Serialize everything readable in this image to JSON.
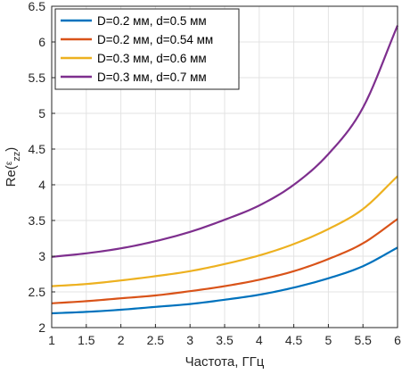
{
  "chart_data": {
    "type": "line",
    "title": "",
    "xlabel": "Частота, ГГц",
    "ylabel": "Re(ε_zz)",
    "ylabel_parts": {
      "base": "Re(",
      "symbol": "ε",
      "subscript": "zz",
      "close": ")"
    },
    "xlim": [
      1,
      6
    ],
    "ylim": [
      2,
      6.5
    ],
    "xticks": [
      1,
      1.5,
      2,
      2.5,
      3,
      3.5,
      4,
      4.5,
      5,
      5.5,
      6
    ],
    "xtick_labels": [
      "1",
      "1.5",
      "2",
      "2.5",
      "3",
      "3.5",
      "4",
      "4.5",
      "5",
      "5.5",
      "6"
    ],
    "yticks": [
      2,
      2.5,
      3,
      3.5,
      4,
      4.5,
      5,
      5.5,
      6,
      6.5
    ],
    "ytick_labels": [
      "2",
      "2.5",
      "3",
      "3.5",
      "4",
      "4.5",
      "5",
      "5.5",
      "6",
      "6.5"
    ],
    "grid": true,
    "legend_position": "top-left",
    "x": [
      1,
      1.5,
      2,
      2.5,
      3,
      3.5,
      4,
      4.5,
      5,
      5.5,
      6
    ],
    "series": [
      {
        "name": "D=0.2 мм, d=0.5 мм",
        "color": "#0072BD",
        "values": [
          2.2,
          2.22,
          2.25,
          2.29,
          2.33,
          2.39,
          2.46,
          2.56,
          2.69,
          2.86,
          3.12
        ]
      },
      {
        "name": "D=0.2 мм, d=0.54 мм",
        "color": "#D95319",
        "values": [
          2.34,
          2.37,
          2.41,
          2.45,
          2.51,
          2.58,
          2.67,
          2.79,
          2.96,
          3.18,
          3.52
        ]
      },
      {
        "name": "D=0.3 мм, d=0.6 мм",
        "color": "#EDB120",
        "values": [
          2.58,
          2.61,
          2.66,
          2.72,
          2.79,
          2.89,
          3.01,
          3.17,
          3.38,
          3.66,
          4.12
        ]
      },
      {
        "name": "D=0.3 мм, d=0.7 мм",
        "color": "#7E2F8E",
        "values": [
          2.99,
          3.04,
          3.11,
          3.21,
          3.34,
          3.51,
          3.71,
          4.0,
          4.43,
          5.08,
          6.23
        ]
      }
    ]
  }
}
